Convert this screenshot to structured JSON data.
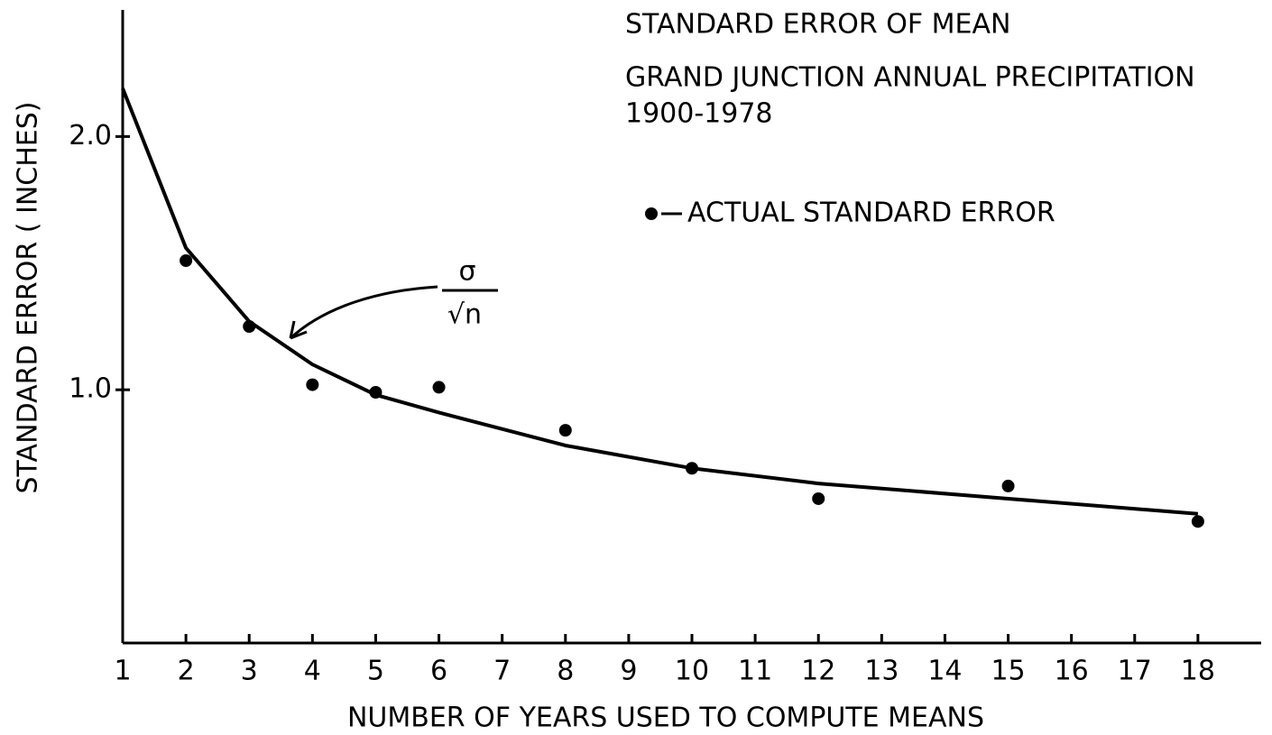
{
  "chart_data": {
    "type": "scatter",
    "title": "STANDARD ERROR OF MEAN",
    "subtitle": [
      "GRAND JUNCTION ANNUAL PRECIPITATION",
      "1900-1978"
    ],
    "x_label": "NUMBER OF YEARS USED TO COMPUTE MEANS",
    "y_label": "STANDARD ERROR ( INCHES)",
    "annotation": {
      "numerator": "σ",
      "denominator": "√n"
    },
    "xlim": [
      1,
      19
    ],
    "ylim": [
      0,
      2.5
    ],
    "xticks": [
      1,
      2,
      3,
      4,
      5,
      6,
      7,
      8,
      9,
      10,
      11,
      12,
      13,
      14,
      15,
      16,
      17,
      18
    ],
    "yticks": [
      {
        "value": 1,
        "label": "1.0"
      },
      {
        "value": 2,
        "label": "2.0"
      }
    ],
    "grid": false,
    "series": [
      {
        "mode": "line",
        "color": "#000000",
        "x": [
          1,
          2,
          3,
          4,
          5,
          6,
          8,
          10,
          12,
          15,
          18
        ],
        "values": [
          2.19,
          1.56,
          1.27,
          1.1,
          0.98,
          0.91,
          0.78,
          0.69,
          0.63,
          0.57,
          0.51
        ]
      },
      {
        "name": "ACTUAL STANDARD ERROR",
        "mode": "markers",
        "color": "#000000",
        "x": [
          2,
          3,
          4,
          5,
          6,
          8,
          10,
          12,
          15,
          18
        ],
        "values": [
          1.51,
          1.25,
          1.02,
          0.99,
          1.01,
          0.84,
          0.69,
          0.57,
          0.62,
          0.48
        ]
      }
    ]
  }
}
